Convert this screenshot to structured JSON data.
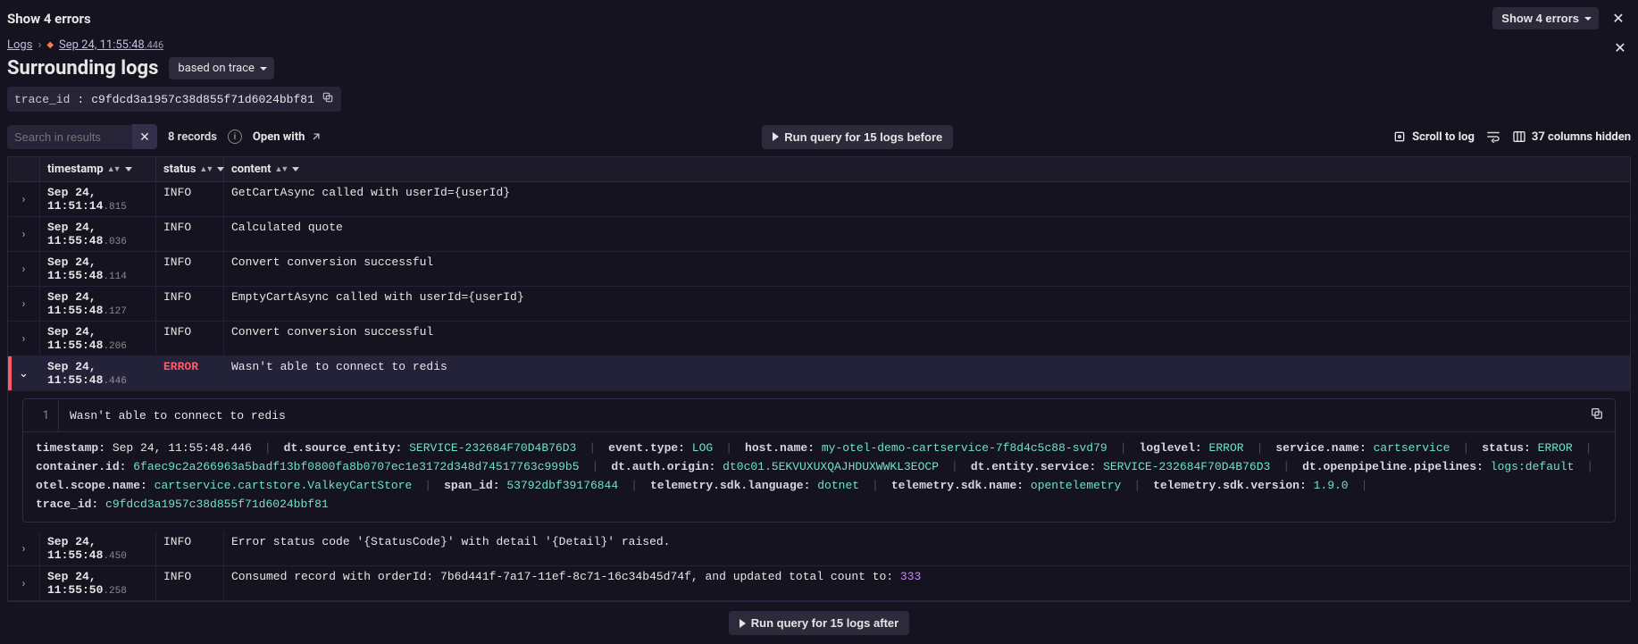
{
  "header": {
    "title_left": "Show 4 errors",
    "show_errors_btn": "Show 4 errors"
  },
  "breadcrumb": {
    "root": "Logs",
    "timestamp_main": "Sep 24, 11:55:48",
    "timestamp_ms": ".446"
  },
  "page": {
    "heading": "Surrounding logs",
    "scope_pill": "based on trace",
    "trace_label": "trace_id",
    "trace_value": "c9fdcd3a1957c38d855f71d6024bbf81"
  },
  "toolbar": {
    "search_placeholder": "Search in results",
    "records": "8 records",
    "open_with": "Open with",
    "run_before": "Run query for 15 logs before",
    "scroll_to_log": "Scroll to log",
    "hidden_cols": "37 columns hidden",
    "run_after": "Run query for 15 logs after"
  },
  "columns": {
    "c1": "timestamp",
    "c2": "status",
    "c3": "content"
  },
  "rows": [
    {
      "ts_main": "Sep 24, 11:51:14",
      "ts_ms": ".815",
      "status": "INFO",
      "content": "GetCartAsync called with userId={userId}",
      "expanded": false,
      "selected": false
    },
    {
      "ts_main": "Sep 24, 11:55:48",
      "ts_ms": ".036",
      "status": "INFO",
      "content": "Calculated quote",
      "expanded": false,
      "selected": false
    },
    {
      "ts_main": "Sep 24, 11:55:48",
      "ts_ms": ".114",
      "status": "INFO",
      "content": "Convert conversion successful",
      "expanded": false,
      "selected": false
    },
    {
      "ts_main": "Sep 24, 11:55:48",
      "ts_ms": ".127",
      "status": "INFO",
      "content": "EmptyCartAsync called with userId={userId}",
      "expanded": false,
      "selected": false
    },
    {
      "ts_main": "Sep 24, 11:55:48",
      "ts_ms": ".206",
      "status": "INFO",
      "content": "Convert conversion successful",
      "expanded": false,
      "selected": false
    },
    {
      "ts_main": "Sep 24, 11:55:48",
      "ts_ms": ".446",
      "status": "ERROR",
      "content": "Wasn't able to connect to redis",
      "expanded": true,
      "selected": true
    },
    {
      "ts_main": "Sep 24, 11:55:48",
      "ts_ms": ".450",
      "status": "INFO",
      "content": "Error status code '{StatusCode}' with detail '{Detail}' raised.",
      "expanded": false,
      "selected": false
    },
    {
      "ts_main": "Sep 24, 11:55:50",
      "ts_ms": ".258",
      "status": "INFO",
      "content": "Consumed record with orderId: 7b6d441f-7a17-11ef-8c71-16c34b45d74f, and updated total count to:",
      "content_num": "333",
      "expanded": false,
      "selected": false
    }
  ],
  "detail": {
    "line_no": "1",
    "text": "Wasn't able to connect to redis",
    "tags": [
      {
        "k": "timestamp",
        "v": "Sep 24, 11:55:48.446",
        "vcolor": "#e6e6e6"
      },
      {
        "k": "dt.source_entity",
        "v": "SERVICE-232684F70D4B76D3"
      },
      {
        "k": "event.type",
        "v": "LOG"
      },
      {
        "k": "host.name",
        "v": "my-otel-demo-cartservice-7f8d4c5c88-svd79"
      },
      {
        "k": "loglevel",
        "v": "ERROR"
      },
      {
        "k": "service.name",
        "v": "cartservice"
      },
      {
        "k": "status",
        "v": "ERROR"
      },
      {
        "k": "container.id",
        "v": "6faec9c2a266963a5badf13bf0800fa8b0707ec1e3172d348d74517763c999b5"
      },
      {
        "k": "dt.auth.origin",
        "v": "dt0c01.5EKVUXUXQAJHDUXWWKL3EOCP"
      },
      {
        "k": "dt.entity.service",
        "v": "SERVICE-232684F70D4B76D3"
      },
      {
        "k": "dt.openpipeline.pipelines",
        "v": "logs:default"
      },
      {
        "k": "otel.scope.name",
        "v": "cartservice.cartstore.ValkeyCartStore"
      },
      {
        "k": "span_id",
        "v": "53792dbf39176844"
      },
      {
        "k": "telemetry.sdk.language",
        "v": "dotnet"
      },
      {
        "k": "telemetry.sdk.name",
        "v": "opentelemetry"
      },
      {
        "k": "telemetry.sdk.version",
        "v": "1.9.0"
      },
      {
        "k": "trace_id",
        "v": "c9fdcd3a1957c38d855f71d6024bbf81"
      }
    ]
  },
  "colors": {
    "status_error": "#ff5a6a",
    "tag_value": "#6fe3c6",
    "number_highlight": "#d085ff",
    "accent_orange": "#ff7a3d"
  }
}
